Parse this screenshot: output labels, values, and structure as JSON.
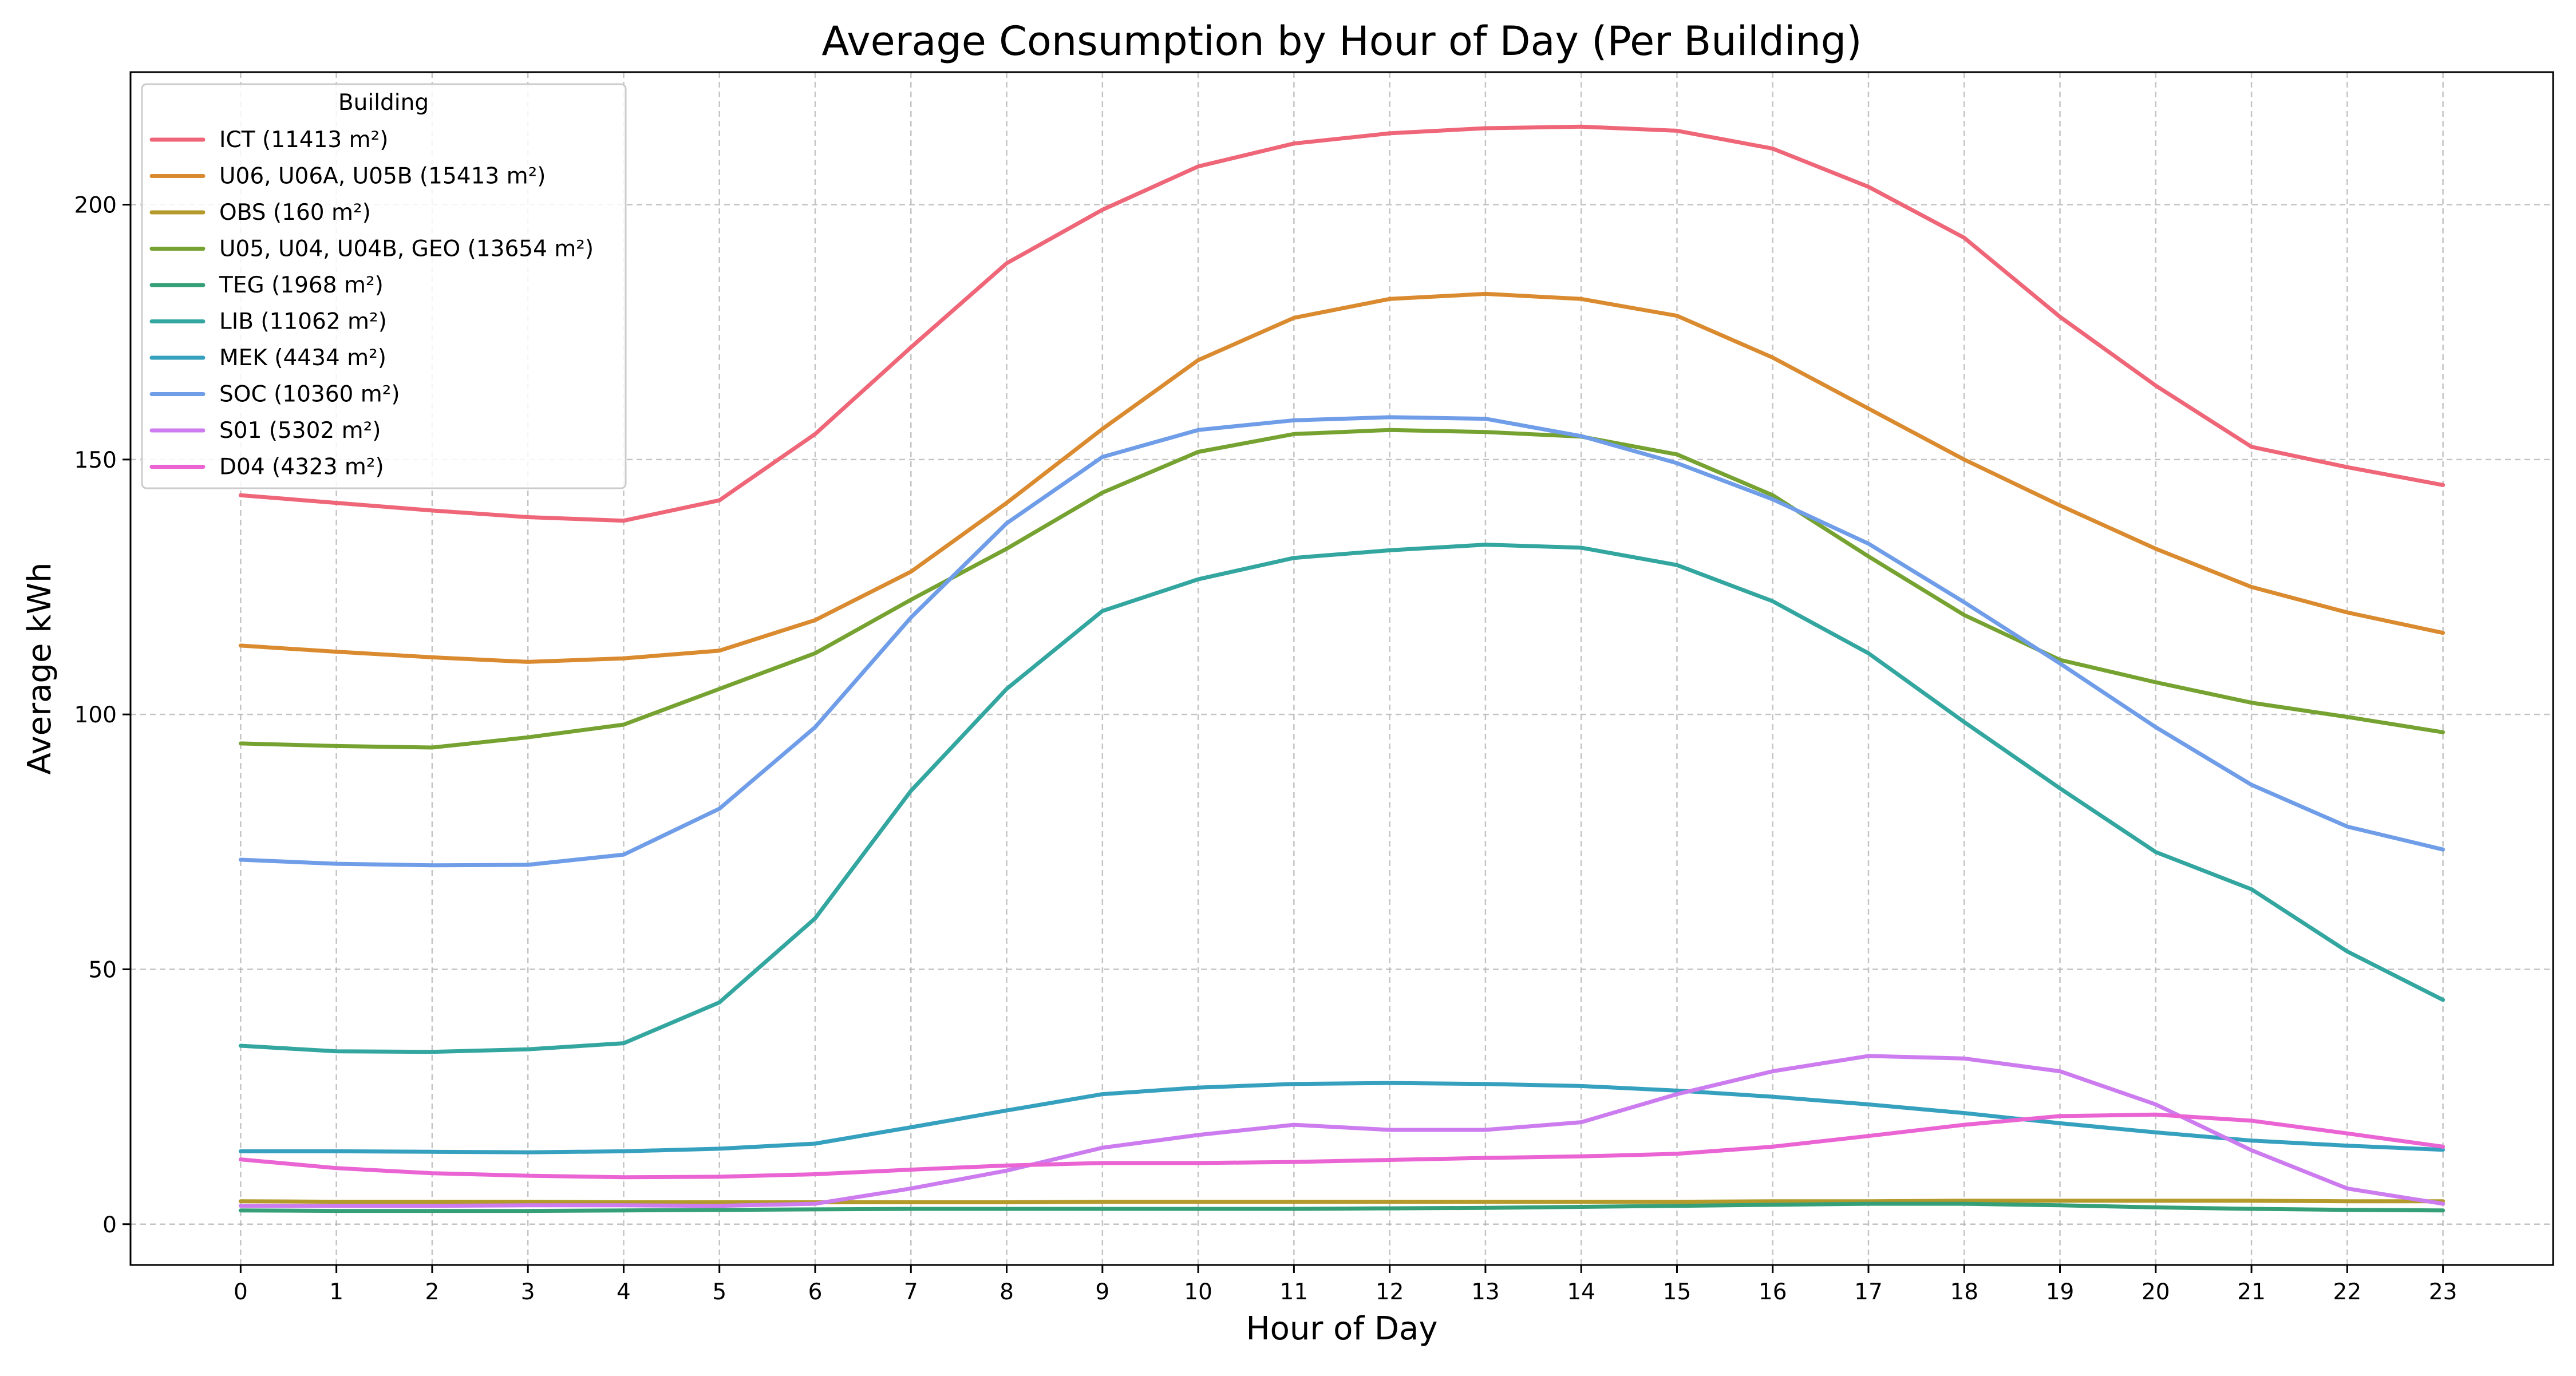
{
  "chart_data": {
    "type": "line",
    "title": "Average Consumption by Hour of Day (Per Building)",
    "xlabel": "Hour of Day",
    "ylabel": "Average kWh",
    "xlim": [
      -1.15,
      24.15
    ],
    "ylim": [
      -8,
      226
    ],
    "x": [
      0,
      1,
      2,
      3,
      4,
      5,
      6,
      7,
      8,
      9,
      10,
      11,
      12,
      13,
      14,
      15,
      16,
      17,
      18,
      19,
      20,
      21,
      22,
      23
    ],
    "x_ticks": [
      0,
      1,
      2,
      3,
      4,
      5,
      6,
      7,
      8,
      9,
      10,
      11,
      12,
      13,
      14,
      15,
      16,
      17,
      18,
      19,
      20,
      21,
      22,
      23
    ],
    "y_ticks": [
      0,
      50,
      100,
      150,
      200
    ],
    "grid": true,
    "legend": {
      "title": "Building",
      "placement": "top-left"
    },
    "series": [
      {
        "name": "ICT (11413 m²)",
        "color": "#ee6677",
        "values": [
          143,
          141.5,
          140,
          138.7,
          138,
          142,
          155,
          172,
          188.5,
          199,
          207.5,
          212,
          214,
          215,
          215.3,
          214.5,
          211,
          203.5,
          193.5,
          178,
          164.5,
          152.5,
          148.5,
          145
        ]
      },
      {
        "name": "U06, U06A, U05B (15413 m²)",
        "color": "#da8a2f",
        "values": [
          113.5,
          112.3,
          111.2,
          110.3,
          111,
          112.5,
          118.5,
          128,
          141.5,
          156,
          169.5,
          177.8,
          181.5,
          182.5,
          181.5,
          178.2,
          170,
          160,
          150,
          141,
          132.5,
          125,
          120,
          116
        ]
      },
      {
        "name": "OBS (160 m²)",
        "color": "#b49a2b",
        "values": [
          4.5,
          4.4,
          4.4,
          4.4,
          4.3,
          4.3,
          4.3,
          4.3,
          4.3,
          4.4,
          4.4,
          4.4,
          4.4,
          4.4,
          4.4,
          4.4,
          4.5,
          4.5,
          4.6,
          4.6,
          4.6,
          4.6,
          4.5,
          4.5
        ]
      },
      {
        "name": "U05, U04, U04B, GEO (13654 m²)",
        "color": "#76a231",
        "values": [
          94.3,
          93.8,
          93.5,
          95.5,
          98,
          105,
          112,
          122.5,
          132.5,
          143.5,
          151.5,
          155,
          155.8,
          155.4,
          154.5,
          151,
          143,
          131,
          119.5,
          110.7,
          106.3,
          102.3,
          99.5,
          96.5
        ]
      },
      {
        "name": "TEG (1968 m²)",
        "color": "#35a078",
        "values": [
          2.7,
          2.6,
          2.6,
          2.6,
          2.7,
          2.8,
          2.9,
          3,
          3,
          3,
          3,
          3,
          3.1,
          3.2,
          3.4,
          3.6,
          3.8,
          4,
          4,
          3.7,
          3.3,
          3,
          2.8,
          2.7
        ]
      },
      {
        "name": "LIB (11062 m²)",
        "color": "#33a6a0",
        "values": [
          35,
          33.9,
          33.8,
          34.3,
          35.5,
          43.5,
          60,
          85,
          105,
          120.3,
          126.5,
          130.7,
          132.2,
          133.3,
          132.7,
          129.3,
          122.2,
          112,
          98.5,
          85.5,
          73,
          65.7,
          53.5,
          44
        ]
      },
      {
        "name": "MEK (4434 m²)",
        "color": "#36a0bf",
        "values": [
          14.3,
          14.3,
          14.2,
          14.1,
          14.3,
          14.8,
          15.8,
          19,
          22.3,
          25.5,
          26.8,
          27.5,
          27.7,
          27.5,
          27.1,
          26.2,
          25,
          23.5,
          21.8,
          19.8,
          18,
          16.4,
          15.4,
          14.6
        ]
      },
      {
        "name": "SOC (10360 m²)",
        "color": "#6f9de8",
        "values": [
          71.5,
          70.7,
          70.4,
          70.5,
          72.5,
          81.5,
          97.5,
          119,
          137.5,
          150.5,
          155.8,
          157.7,
          158.3,
          158,
          154.6,
          149.3,
          142.2,
          133.5,
          122,
          110,
          97.5,
          86.2,
          78,
          73.5
        ]
      },
      {
        "name": "S01 (5302 m²)",
        "color": "#cc7cee",
        "values": [
          3.6,
          3.6,
          3.6,
          3.7,
          3.7,
          3.6,
          4,
          7,
          10.5,
          15,
          17.5,
          19.5,
          18.5,
          18.5,
          20,
          25.5,
          30,
          33,
          32.5,
          30,
          23.5,
          14.5,
          7,
          4
        ]
      },
      {
        "name": "D04 (4323 m²)",
        "color": "#ea64d3",
        "values": [
          12.7,
          11,
          10,
          9.5,
          9.2,
          9.3,
          9.8,
          10.7,
          11.5,
          12,
          12,
          12.2,
          12.6,
          13,
          13.3,
          13.8,
          15.2,
          17.3,
          19.5,
          21.2,
          21.5,
          20.3,
          17.8,
          15.2
        ]
      }
    ]
  }
}
